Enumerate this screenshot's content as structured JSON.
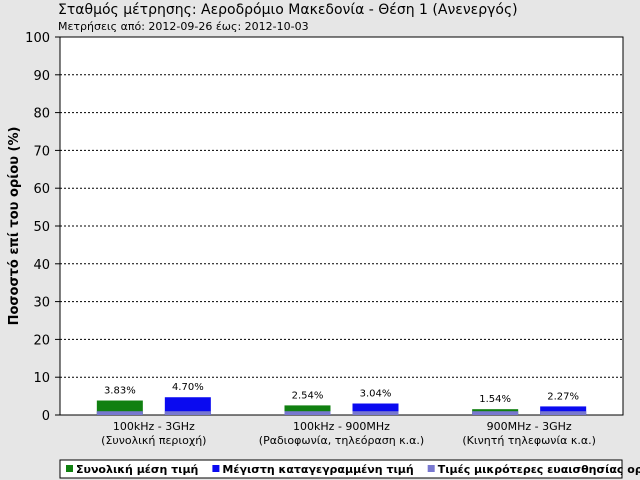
{
  "chart_data": {
    "type": "bar",
    "title": "Σταθμός μέτρησης: Αεροδρόμιο Μακεδονία - Θέση 1 (Ανενεργός)",
    "subtitle": "Μετρήσεις από: 2012-09-26 έως: 2012-10-03",
    "y_label": "Ποσοστό επί του ορίου (%)",
    "categories": [
      [
        "100kHz - 3GHz",
        "(Συνολική περιοχή)"
      ],
      [
        "100kHz - 900MHz",
        "(Ραδιοφωνία, τηλεόραση κ.α.)"
      ],
      [
        "900MHz - 3GHz",
        "(Κινητή τηλεφωνία κ.α.)"
      ]
    ],
    "series": [
      {
        "name": "Συνολική μέση τιμή",
        "color": "#108010",
        "values": [
          3.83,
          2.54,
          1.54
        ],
        "value_labels": [
          "3.83%",
          "2.54%",
          "1.54%"
        ]
      },
      {
        "name": "Μέγιστη καταγεγραμμένη τιμή",
        "color": "#0a0af0",
        "values": [
          4.7,
          3.04,
          2.27
        ],
        "value_labels": [
          "4.70%",
          "3.04%",
          "2.27%"
        ]
      },
      {
        "name": "Τιμές μικρότερες ευαισθησίας οργάνου",
        "color": "#7878d0",
        "values": [
          1,
          1,
          1
        ],
        "overlay": true
      }
    ],
    "ylim": [
      0,
      100
    ],
    "yticks": [
      0,
      10,
      20,
      30,
      40,
      50,
      60,
      70,
      80,
      90,
      100
    ],
    "grid": true
  }
}
